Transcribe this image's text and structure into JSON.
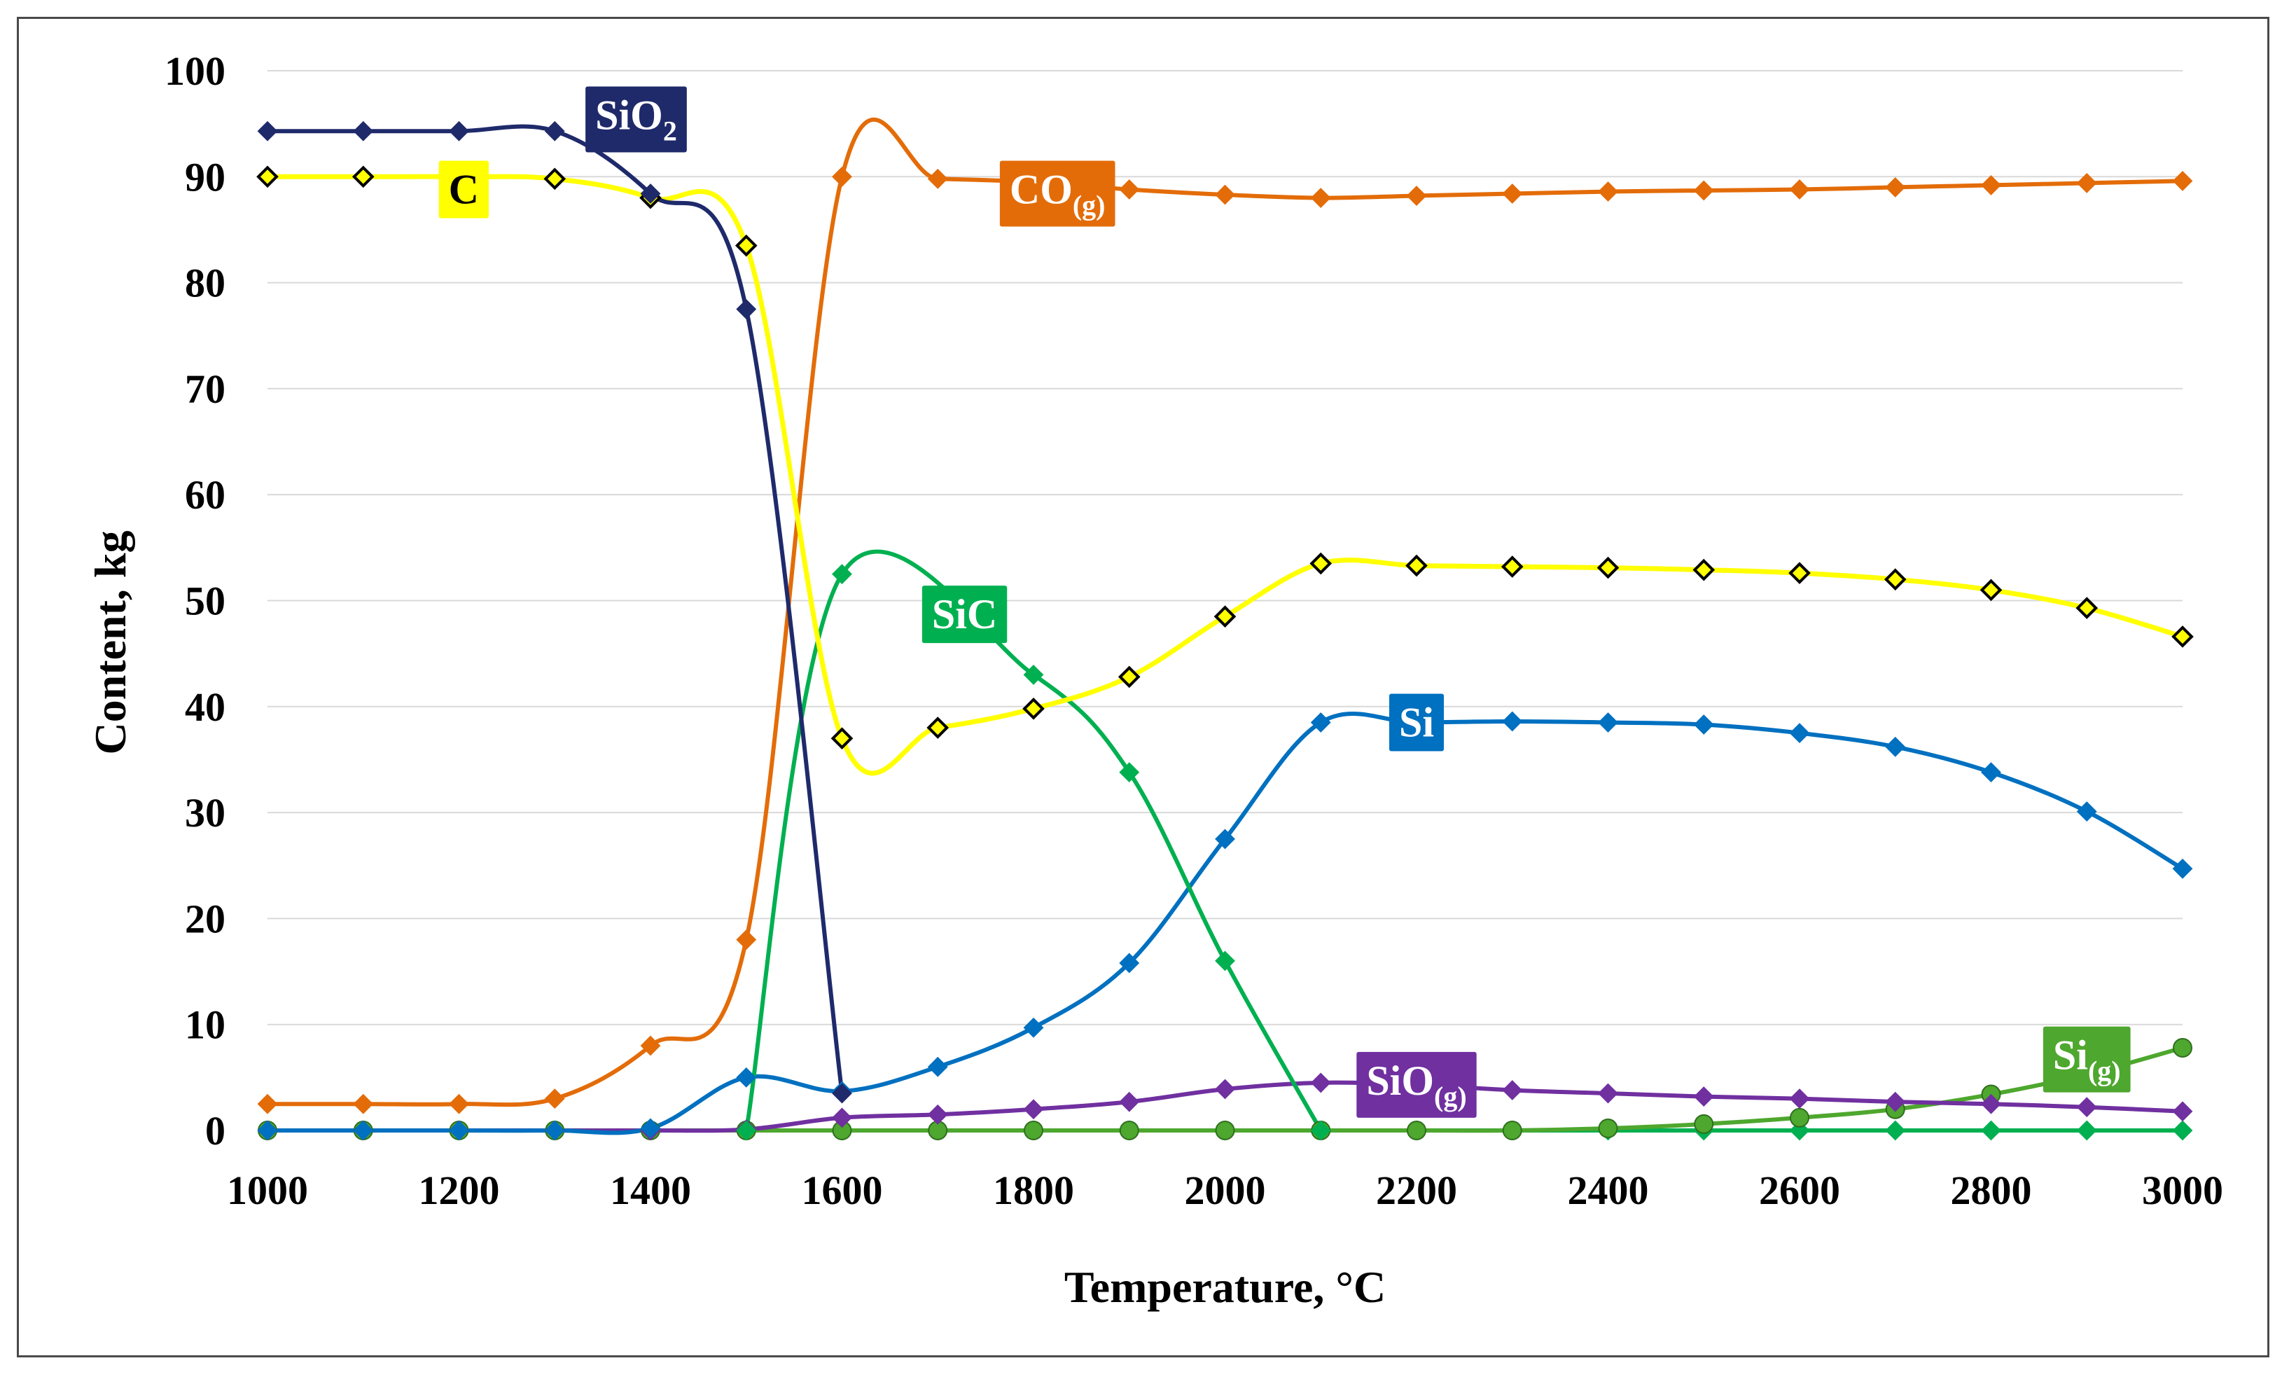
{
  "chart_data": {
    "type": "line",
    "title": "",
    "xlabel": "Temperature, °C",
    "ylabel": "Content,  kg",
    "xlim": [
      1000,
      3000
    ],
    "ylim": [
      0,
      100
    ],
    "x_ticks": [
      "1000",
      "1200",
      "1400",
      "1600",
      "1800",
      "2000",
      "2200",
      "2400",
      "2600",
      "2800",
      "3000"
    ],
    "y_ticks": [
      "0",
      "10",
      "20",
      "30",
      "40",
      "50",
      "60",
      "70",
      "80",
      "90",
      "100"
    ],
    "grid": "horizontal",
    "x": [
      1000,
      1100,
      1200,
      1300,
      1400,
      1500,
      1600,
      1700,
      1800,
      1900,
      2000,
      2100,
      2200,
      2300,
      2400,
      2500,
      2600,
      2700,
      2800,
      2900,
      3000
    ],
    "series": [
      {
        "name": "SiO2",
        "label_main": "SiO",
        "label_sub": "2",
        "label_at": [
          1385,
          95.8
        ],
        "color": "#1F2A6B",
        "label_bg": "#1F2A6B",
        "label_fg": "#ffffff",
        "marker": "diamond",
        "values": [
          94.3,
          94.3,
          94.3,
          94.3,
          88.4,
          77.5,
          3.5,
          null,
          null,
          null,
          null,
          null,
          null,
          null,
          null,
          null,
          null,
          null,
          null,
          null,
          null
        ]
      },
      {
        "name": "C",
        "label_main": "C",
        "label_sub": "",
        "label_at": [
          1205,
          88.8
        ],
        "color": "#FFFF00",
        "label_bg": "#FFFF00",
        "label_fg": "#000000",
        "marker": "diamond-open",
        "values": [
          90.0,
          90.0,
          90.0,
          89.8,
          88.0,
          83.5,
          37.0,
          38.0,
          39.8,
          42.8,
          48.5,
          53.5,
          53.3,
          53.2,
          53.1,
          52.9,
          52.6,
          52.0,
          51.0,
          49.3,
          46.6
        ]
      },
      {
        "name": "CO(g)",
        "label_main": "CO",
        "label_sub": "(g)",
        "label_at": [
          1825,
          88.8
        ],
        "color": "#E36C09",
        "label_bg": "#E36C09",
        "label_fg": "#ffffff",
        "marker": "diamond",
        "values": [
          2.5,
          2.5,
          2.5,
          3.0,
          8.0,
          18.0,
          90.0,
          89.8,
          89.5,
          88.8,
          88.3,
          88.0,
          88.2,
          88.4,
          88.6,
          88.7,
          88.8,
          89.0,
          89.2,
          89.4,
          89.6
        ]
      },
      {
        "name": "SiC",
        "label_main": "SiC",
        "label_sub": "",
        "label_at": [
          1728,
          48.7
        ],
        "color": "#00B050",
        "label_bg": "#00B050",
        "label_fg": "#ffffff",
        "marker": "diamond",
        "values": [
          null,
          null,
          null,
          null,
          null,
          0.0,
          52.5,
          null,
          43.0,
          33.8,
          16.0,
          0.0,
          null,
          null,
          null,
          null,
          null,
          null,
          null,
          null,
          null
        ]
      },
      {
        "name": "Si",
        "label_main": "Si",
        "label_sub": "",
        "label_at": [
          2200,
          38.5
        ],
        "color": "#0070C0",
        "label_bg": "#0070C0",
        "label_fg": "#ffffff",
        "marker": "diamond",
        "values": [
          0,
          0,
          0,
          0,
          0.2,
          5.0,
          3.7,
          6.0,
          9.7,
          15.8,
          27.5,
          38.5,
          38.5,
          38.6,
          38.5,
          38.3,
          37.5,
          36.2,
          33.8,
          30.1,
          24.7
        ]
      },
      {
        "name": "SiO(g)",
        "label_main": "SiO",
        "label_sub": "(g)",
        "label_at": [
          2200,
          4.7
        ],
        "color": "#7030A0",
        "label_bg": "#7030A0",
        "label_fg": "#ffffff",
        "marker": "diamond",
        "values": [
          0,
          0,
          0,
          0,
          0,
          0.1,
          1.2,
          1.5,
          2.0,
          2.7,
          3.9,
          4.5,
          4.3,
          3.8,
          3.5,
          3.2,
          3.0,
          2.7,
          2.5,
          2.2,
          1.8
        ]
      },
      {
        "name": "Si(g)",
        "label_main": "Si",
        "label_sub": "(g)",
        "label_at": [
          2900,
          7.1
        ],
        "color": "#4EA72E",
        "label_bg": "#4EA72E",
        "label_fg": "#ffffff",
        "marker": "circle",
        "values": [
          0,
          0,
          0,
          0,
          0,
          0,
          0,
          0,
          0,
          0,
          0,
          0,
          0,
          0,
          0.2,
          0.6,
          1.2,
          2.0,
          3.4,
          5.3,
          7.8
        ]
      },
      {
        "name": "Baseline",
        "label_main": "",
        "label_sub": "",
        "label_at": null,
        "color": "#00B050",
        "label_bg": "",
        "label_fg": "",
        "marker": "diamond",
        "values": [
          null,
          null,
          null,
          null,
          null,
          0,
          0,
          0,
          0,
          0,
          0,
          0,
          0,
          0,
          0,
          0,
          0,
          0,
          0,
          0,
          0
        ]
      }
    ]
  }
}
